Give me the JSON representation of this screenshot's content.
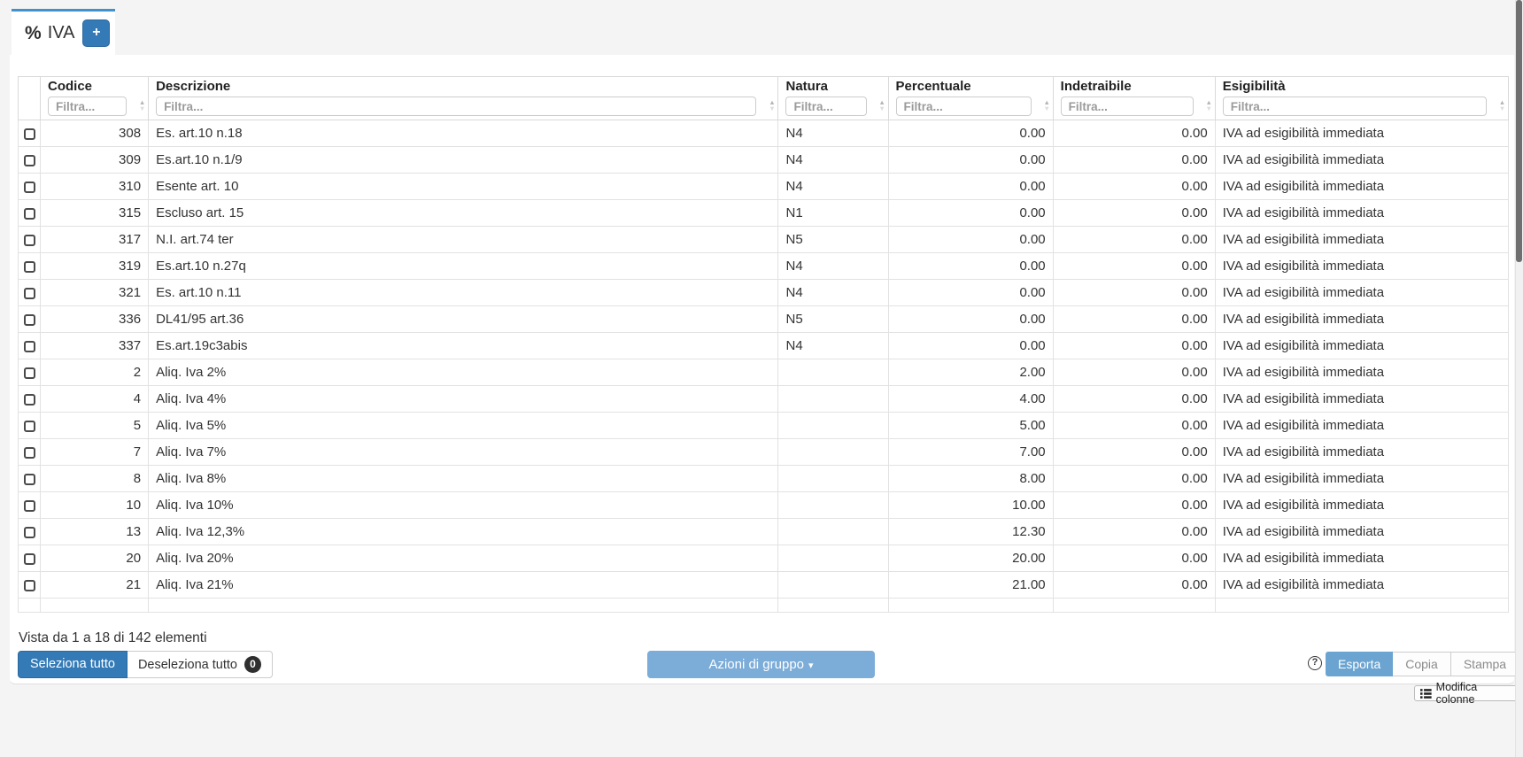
{
  "tab": {
    "icon_glyph": "%",
    "title": "IVA",
    "add_label": "+"
  },
  "icons": {
    "sort_asc": "▲",
    "sort_desc": "▼",
    "caret_down": "▾",
    "help": "?"
  },
  "colors": {
    "accent_blue": "#337ab7",
    "tab_accent": "#4191cc",
    "group_action_blue": "#7cacd8",
    "export_blue": "#6ba4d1",
    "badge_dark": "#2f2f2f"
  },
  "table": {
    "columns": [
      {
        "key": "codice",
        "label": "Codice",
        "filter_placeholder": "Filtra..."
      },
      {
        "key": "descrizione",
        "label": "Descrizione",
        "filter_placeholder": "Filtra..."
      },
      {
        "key": "natura",
        "label": "Natura",
        "filter_placeholder": "Filtra..."
      },
      {
        "key": "percentuale",
        "label": "Percentuale",
        "filter_placeholder": "Filtra..."
      },
      {
        "key": "indetraibile",
        "label": "Indetraibile",
        "filter_placeholder": "Filtra..."
      },
      {
        "key": "esigibilita",
        "label": "Esigibilità",
        "filter_placeholder": "Filtra..."
      }
    ],
    "rows": [
      {
        "codice": "308",
        "descrizione": "Es. art.10 n.18",
        "natura": "N4",
        "percentuale": "0.00",
        "indetraibile": "0.00",
        "esigibilita": "IVA ad esigibilità immediata"
      },
      {
        "codice": "309",
        "descrizione": "Es.art.10 n.1/9",
        "natura": "N4",
        "percentuale": "0.00",
        "indetraibile": "0.00",
        "esigibilita": "IVA ad esigibilità immediata"
      },
      {
        "codice": "310",
        "descrizione": "Esente art. 10",
        "natura": "N4",
        "percentuale": "0.00",
        "indetraibile": "0.00",
        "esigibilita": "IVA ad esigibilità immediata"
      },
      {
        "codice": "315",
        "descrizione": "Escluso art. 15",
        "natura": "N1",
        "percentuale": "0.00",
        "indetraibile": "0.00",
        "esigibilita": "IVA ad esigibilità immediata"
      },
      {
        "codice": "317",
        "descrizione": "N.I. art.74 ter",
        "natura": "N5",
        "percentuale": "0.00",
        "indetraibile": "0.00",
        "esigibilita": "IVA ad esigibilità immediata"
      },
      {
        "codice": "319",
        "descrizione": "Es.art.10 n.27q",
        "natura": "N4",
        "percentuale": "0.00",
        "indetraibile": "0.00",
        "esigibilita": "IVA ad esigibilità immediata"
      },
      {
        "codice": "321",
        "descrizione": "Es. art.10 n.11",
        "natura": "N4",
        "percentuale": "0.00",
        "indetraibile": "0.00",
        "esigibilita": "IVA ad esigibilità immediata"
      },
      {
        "codice": "336",
        "descrizione": "DL41/95 art.36",
        "natura": "N5",
        "percentuale": "0.00",
        "indetraibile": "0.00",
        "esigibilita": "IVA ad esigibilità immediata"
      },
      {
        "codice": "337",
        "descrizione": "Es.art.19c3abis",
        "natura": "N4",
        "percentuale": "0.00",
        "indetraibile": "0.00",
        "esigibilita": "IVA ad esigibilità immediata"
      },
      {
        "codice": "2",
        "descrizione": "Aliq. Iva 2%",
        "natura": "",
        "percentuale": "2.00",
        "indetraibile": "0.00",
        "esigibilita": "IVA ad esigibilità immediata"
      },
      {
        "codice": "4",
        "descrizione": "Aliq. Iva 4%",
        "natura": "",
        "percentuale": "4.00",
        "indetraibile": "0.00",
        "esigibilita": "IVA ad esigibilità immediata"
      },
      {
        "codice": "5",
        "descrizione": "Aliq. Iva 5%",
        "natura": "",
        "percentuale": "5.00",
        "indetraibile": "0.00",
        "esigibilita": "IVA ad esigibilità immediata"
      },
      {
        "codice": "7",
        "descrizione": "Aliq. Iva 7%",
        "natura": "",
        "percentuale": "7.00",
        "indetraibile": "0.00",
        "esigibilita": "IVA ad esigibilità immediata"
      },
      {
        "codice": "8",
        "descrizione": "Aliq. Iva 8%",
        "natura": "",
        "percentuale": "8.00",
        "indetraibile": "0.00",
        "esigibilita": "IVA ad esigibilità immediata"
      },
      {
        "codice": "10",
        "descrizione": "Aliq. Iva 10%",
        "natura": "",
        "percentuale": "10.00",
        "indetraibile": "0.00",
        "esigibilita": "IVA ad esigibilità immediata"
      },
      {
        "codice": "13",
        "descrizione": "Aliq. Iva 12,3%",
        "natura": "",
        "percentuale": "12.30",
        "indetraibile": "0.00",
        "esigibilita": "IVA ad esigibilità immediata"
      },
      {
        "codice": "20",
        "descrizione": "Aliq. Iva 20%",
        "natura": "",
        "percentuale": "20.00",
        "indetraibile": "0.00",
        "esigibilita": "IVA ad esigibilità immediata"
      },
      {
        "codice": "21",
        "descrizione": "Aliq. Iva 21%",
        "natura": "",
        "percentuale": "21.00",
        "indetraibile": "0.00",
        "esigibilita": "IVA ad esigibilità immediata"
      }
    ]
  },
  "footer": {
    "summary": "Vista da 1 a 18 di 142 elementi",
    "select_all": "Seleziona tutto",
    "deselect_all": "Deseleziona tutto",
    "deselect_count": "0",
    "group_actions": "Azioni di gruppo",
    "export": "Esporta",
    "copy": "Copia",
    "print": "Stampa",
    "modify_columns": "Modifica colonne"
  }
}
